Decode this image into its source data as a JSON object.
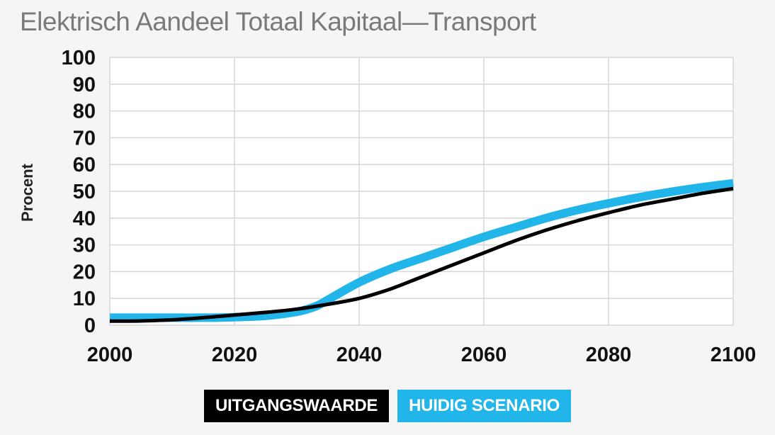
{
  "chart_data": {
    "type": "line",
    "title": "Elektrisch Aandeel Totaal Kapitaal—Transport",
    "ylabel": "Procent",
    "xlabel": "",
    "xlim": [
      2000,
      2100
    ],
    "ylim": [
      0,
      100
    ],
    "x_ticks": [
      2000,
      2020,
      2040,
      2060,
      2080,
      2100
    ],
    "y_ticks": [
      0,
      10,
      20,
      30,
      40,
      50,
      60,
      70,
      80,
      90,
      100
    ],
    "grid": true,
    "legend_placement": "bottom-center",
    "series": [
      {
        "name": "UITGANGSWAARDE",
        "color": "#000000",
        "points": [
          [
            2000,
            1.5
          ],
          [
            2005,
            1.6
          ],
          [
            2010,
            2
          ],
          [
            2015,
            2.8
          ],
          [
            2020,
            3.8
          ],
          [
            2025,
            4.8
          ],
          [
            2030,
            6
          ],
          [
            2035,
            7.8
          ],
          [
            2040,
            10
          ],
          [
            2045,
            13.5
          ],
          [
            2050,
            18
          ],
          [
            2055,
            22.5
          ],
          [
            2060,
            27
          ],
          [
            2065,
            31.5
          ],
          [
            2070,
            35.5
          ],
          [
            2075,
            39
          ],
          [
            2080,
            42
          ],
          [
            2085,
            44.8
          ],
          [
            2090,
            47
          ],
          [
            2095,
            49.2
          ],
          [
            2100,
            51
          ]
        ]
      },
      {
        "name": "HUIDIG SCENARIO",
        "color": "#22b5ea",
        "points": [
          [
            2000,
            2.8
          ],
          [
            2005,
            2.8
          ],
          [
            2010,
            2.8
          ],
          [
            2015,
            2.8
          ],
          [
            2020,
            3
          ],
          [
            2025,
            3.5
          ],
          [
            2030,
            5
          ],
          [
            2033,
            7
          ],
          [
            2035,
            9.5
          ],
          [
            2040,
            16
          ],
          [
            2045,
            21
          ],
          [
            2050,
            25
          ],
          [
            2055,
            29
          ],
          [
            2060,
            33
          ],
          [
            2065,
            36.5
          ],
          [
            2070,
            40
          ],
          [
            2075,
            43
          ],
          [
            2080,
            45.5
          ],
          [
            2085,
            47.8
          ],
          [
            2090,
            49.8
          ],
          [
            2095,
            51.5
          ],
          [
            2100,
            53
          ]
        ]
      }
    ]
  }
}
